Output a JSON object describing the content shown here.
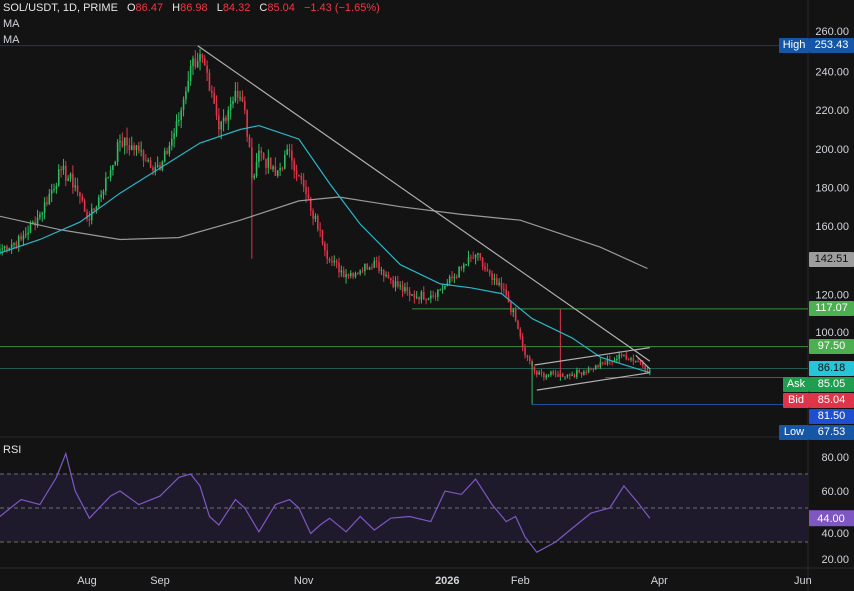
{
  "header": {
    "symbol": "SOL/USDT, 1D, PRIME",
    "open_label": "O",
    "open": "86.47",
    "high_label": "H",
    "high": "86.98",
    "low_label": "L",
    "low": "84.32",
    "close_label": "C",
    "close": "85.04",
    "change": "−1.43 (−1.65%)",
    "indicators": [
      "MA",
      "MA"
    ]
  },
  "chart_data": {
    "type": "candlestick",
    "price_ticks": [
      260,
      240,
      220,
      200,
      180,
      160,
      120,
      100
    ],
    "price_tick_labels": [
      "260.00",
      "240.00",
      "220.00",
      "200.00",
      "180.00",
      "160.00",
      "120.00",
      "100.00"
    ],
    "x_ticks": [
      {
        "label": "Aug",
        "date": "2025-08-01",
        "bold": false
      },
      {
        "label": "Sep",
        "date": "2025-09-01",
        "bold": false
      },
      {
        "label": "Nov",
        "date": "2025-11-01",
        "bold": false
      },
      {
        "label": "2026",
        "date": "2026-01-01",
        "bold": true
      },
      {
        "label": "Feb",
        "date": "2026-02-01",
        "bold": false
      },
      {
        "label": "Apr",
        "date": "2026-04-01",
        "bold": false
      },
      {
        "label": "Jun",
        "date": "2026-06-01",
        "bold": false
      }
    ],
    "closes": [
      [
        "2025-06-25",
        148
      ],
      [
        "2025-07-04",
        153
      ],
      [
        "2025-07-12",
        166
      ],
      [
        "2025-07-21",
        189
      ],
      [
        "2025-07-27",
        181
      ],
      [
        "2025-08-02",
        163
      ],
      [
        "2025-08-11",
        189
      ],
      [
        "2025-08-15",
        204
      ],
      [
        "2025-08-23",
        199
      ],
      [
        "2025-09-01",
        189
      ],
      [
        "2025-09-09",
        215
      ],
      [
        "2025-09-14",
        243
      ],
      [
        "2025-09-18",
        249
      ],
      [
        "2025-09-22",
        230
      ],
      [
        "2025-09-26",
        210
      ],
      [
        "2025-10-03",
        230
      ],
      [
        "2025-10-07",
        220
      ],
      [
        "2025-10-10",
        185
      ],
      [
        "2025-10-13",
        199
      ],
      [
        "2025-10-20",
        186
      ],
      [
        "2025-10-26",
        199
      ],
      [
        "2025-10-30",
        186
      ],
      [
        "2025-11-04",
        168
      ],
      [
        "2025-11-08",
        158
      ],
      [
        "2025-11-12",
        142
      ],
      [
        "2025-11-19",
        135
      ],
      [
        "2025-11-25",
        137
      ],
      [
        "2025-12-01",
        142
      ],
      [
        "2025-12-08",
        132
      ],
      [
        "2025-12-16",
        124
      ],
      [
        "2025-12-25",
        124
      ],
      [
        "2025-12-31",
        129
      ],
      [
        "2026-01-07",
        138
      ],
      [
        "2026-01-13",
        145
      ],
      [
        "2026-01-20",
        132
      ],
      [
        "2026-01-26",
        124
      ],
      [
        "2026-01-30",
        111
      ],
      [
        "2026-02-03",
        93
      ],
      [
        "2026-02-08",
        83
      ],
      [
        "2026-02-16",
        83
      ],
      [
        "2026-02-23",
        83
      ],
      [
        "2026-03-03",
        86
      ],
      [
        "2026-03-11",
        90
      ],
      [
        "2026-03-17",
        93
      ],
      [
        "2026-03-23",
        90
      ],
      [
        "2026-03-28",
        85.04
      ]
    ],
    "ma_fast": [
      [
        "2025-06-25",
        146
      ],
      [
        "2025-07-12",
        153
      ],
      [
        "2025-07-29",
        162
      ],
      [
        "2025-08-15",
        177
      ],
      [
        "2025-09-01",
        190
      ],
      [
        "2025-09-18",
        203
      ],
      [
        "2025-10-05",
        210
      ],
      [
        "2025-10-13",
        212
      ],
      [
        "2025-10-30",
        205
      ],
      [
        "2025-11-12",
        182
      ],
      [
        "2025-11-25",
        161
      ],
      [
        "2025-12-12",
        140
      ],
      [
        "2025-12-29",
        130
      ],
      [
        "2026-01-11",
        128
      ],
      [
        "2026-01-24",
        125
      ],
      [
        "2026-02-06",
        112
      ],
      [
        "2026-02-23",
        102
      ],
      [
        "2026-03-07",
        92
      ],
      [
        "2026-03-20",
        87
      ],
      [
        "2026-03-28",
        84
      ]
    ],
    "ma_slow": [
      [
        "2025-06-25",
        165
      ],
      [
        "2025-07-21",
        158
      ],
      [
        "2025-08-15",
        153
      ],
      [
        "2025-09-09",
        154
      ],
      [
        "2025-10-05",
        163
      ],
      [
        "2025-10-30",
        173
      ],
      [
        "2025-11-16",
        175
      ],
      [
        "2025-12-12",
        170
      ],
      [
        "2026-01-07",
        166
      ],
      [
        "2026-02-01",
        163
      ],
      [
        "2026-02-18",
        156
      ],
      [
        "2026-03-07",
        149
      ],
      [
        "2026-03-27",
        138
      ]
    ],
    "trendline": [
      [
        "2025-09-17",
        253.43
      ],
      [
        "2026-03-28",
        90
      ]
    ],
    "channel_upper": [
      [
        "2026-02-07",
        88
      ],
      [
        "2026-03-28",
        97
      ]
    ],
    "channel_lower": [
      [
        "2026-02-08",
        75
      ],
      [
        "2026-03-28",
        84
      ]
    ],
    "channel_mid": [
      [
        "2026-03-22",
        93
      ],
      [
        "2026-03-28",
        86
      ]
    ],
    "hlines": [
      {
        "price": 253.43,
        "color": "#1c3a66",
        "from": null
      },
      {
        "price": 117.07,
        "color": "#3e8e41",
        "from": "2025-12-17"
      },
      {
        "price": 97.5,
        "color": "#3e8e41",
        "from": null
      },
      {
        "price": 86.18,
        "color": "#24594f",
        "from": null
      },
      {
        "price": 81.5,
        "color": "#2157c9",
        "from": "2026-03-09"
      },
      {
        "price": 67.53,
        "color": "#1e4f9a",
        "from": "2026-02-06"
      }
    ],
    "price_tags": [
      {
        "label": "High",
        "value": "253.43",
        "price": 253.43,
        "color": "#1656a6"
      },
      {
        "label": "",
        "value": "142.51",
        "price": 142.51,
        "color": "#9e9e9e"
      },
      {
        "label": "",
        "value": "117.07",
        "price": 117.07,
        "color": "#4caf50"
      },
      {
        "label": "",
        "value": "97.50",
        "price": 97.5,
        "color": "#4caf50"
      },
      {
        "label": "",
        "value": "86.18",
        "price": 86.18,
        "color": "#26c6da"
      },
      {
        "label": "Ask",
        "value": "85.05",
        "price": 85.05,
        "color": "#1e9e4e"
      },
      {
        "label": "Bid",
        "value": "85.04",
        "price": 85.04,
        "color": "#e0344a"
      },
      {
        "label": "",
        "value": "81.50",
        "price": 81.5,
        "color": "#1f4fd1"
      },
      {
        "label": "Low",
        "value": "67.53",
        "price": 67.53,
        "color": "#1656a6"
      }
    ],
    "colors": {
      "up": "#2ebd5f",
      "down": "#e0344a",
      "ma_fast": "#2bb5c9",
      "ma_slow": "#9a9a9a",
      "rsi": "#7e57c2",
      "background": "#131313"
    }
  },
  "rsi": {
    "title": "RSI",
    "ticks": [
      "80.00",
      "60.00",
      "40.00",
      "20.00"
    ],
    "tick_values": [
      80,
      60,
      40,
      20
    ],
    "bands": [
      70,
      50,
      30
    ],
    "current": "44.00",
    "values": [
      [
        "2025-06-25",
        45
      ],
      [
        "2025-07-04",
        55
      ],
      [
        "2025-07-12",
        52
      ],
      [
        "2025-07-19",
        68
      ],
      [
        "2025-07-23",
        82
      ],
      [
        "2025-07-27",
        60
      ],
      [
        "2025-08-02",
        44
      ],
      [
        "2025-08-11",
        57
      ],
      [
        "2025-08-15",
        60
      ],
      [
        "2025-08-23",
        52
      ],
      [
        "2025-09-01",
        57
      ],
      [
        "2025-09-09",
        68
      ],
      [
        "2025-09-14",
        70
      ],
      [
        "2025-09-18",
        63
      ],
      [
        "2025-09-22",
        45
      ],
      [
        "2025-09-26",
        40
      ],
      [
        "2025-10-03",
        55
      ],
      [
        "2025-10-07",
        50
      ],
      [
        "2025-10-13",
        36
      ],
      [
        "2025-10-20",
        52
      ],
      [
        "2025-10-26",
        55
      ],
      [
        "2025-10-30",
        50
      ],
      [
        "2025-11-04",
        35
      ],
      [
        "2025-11-08",
        40
      ],
      [
        "2025-11-12",
        44
      ],
      [
        "2025-11-19",
        36
      ],
      [
        "2025-11-25",
        45
      ],
      [
        "2025-12-01",
        37
      ],
      [
        "2025-12-08",
        44
      ],
      [
        "2025-12-16",
        45
      ],
      [
        "2025-12-25",
        42
      ],
      [
        "2025-12-31",
        60
      ],
      [
        "2026-01-07",
        58
      ],
      [
        "2026-01-13",
        67
      ],
      [
        "2026-01-20",
        52
      ],
      [
        "2026-01-26",
        42
      ],
      [
        "2026-01-30",
        45
      ],
      [
        "2026-02-03",
        33
      ],
      [
        "2026-02-08",
        24
      ],
      [
        "2026-02-16",
        30
      ],
      [
        "2026-02-23",
        38
      ],
      [
        "2026-03-03",
        47
      ],
      [
        "2026-03-11",
        50
      ],
      [
        "2026-03-17",
        63
      ],
      [
        "2026-03-23",
        53
      ],
      [
        "2026-03-28",
        44
      ]
    ]
  }
}
